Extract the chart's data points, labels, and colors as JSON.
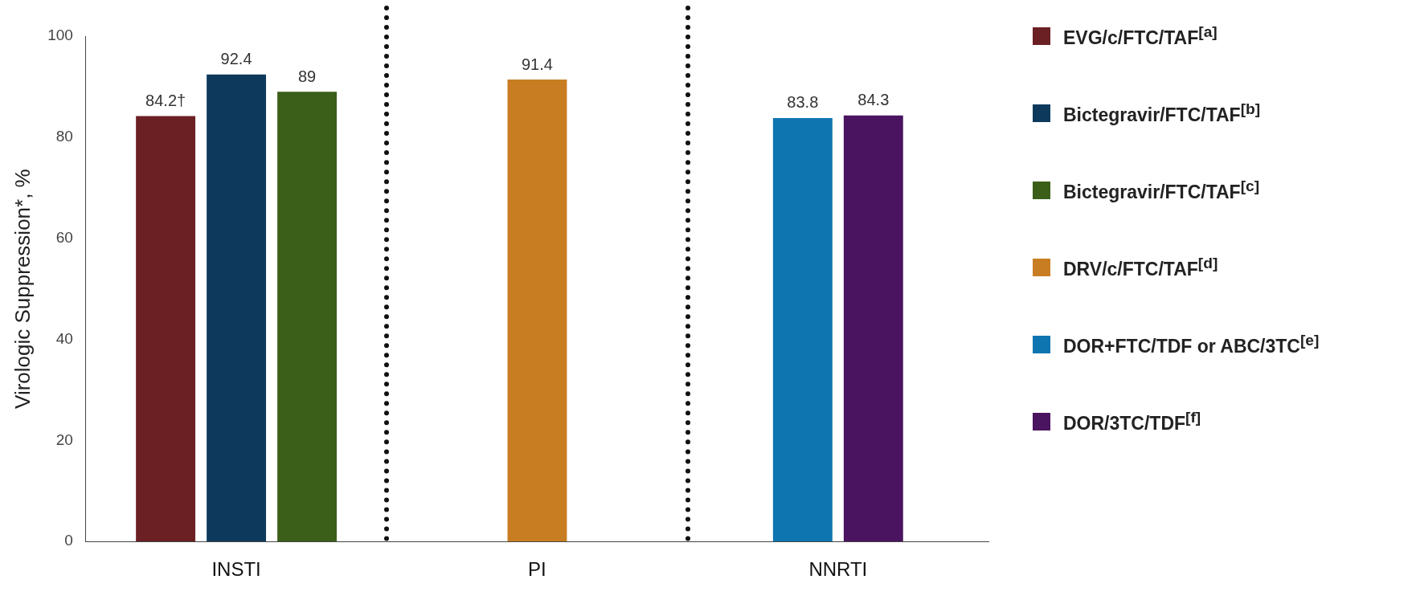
{
  "chart_data": {
    "type": "bar",
    "ylabel": "Virologic Suppression*, %",
    "categories": [
      "INSTI",
      "PI",
      "NNRTI"
    ],
    "series": [
      {
        "name": "EVG/c/FTC/TAF$^{[a]}$",
        "color": "#6b2024",
        "values": [
          84.2,
          null,
          null
        ],
        "value_labels": [
          "84.2†",
          null,
          null
        ]
      },
      {
        "name": "Bictegravir/FTC/TAF$^{[b]}$",
        "color": "#0d3a5c",
        "values": [
          92.4,
          null,
          null
        ],
        "value_labels": [
          "92.4",
          null,
          null
        ]
      },
      {
        "name": "Bictegravir/FTC/TAF$^{[c]}$",
        "color": "#3b5e19",
        "values": [
          89,
          null,
          null
        ],
        "value_labels": [
          "89",
          null,
          null
        ]
      },
      {
        "name": "DRV/c/FTC/TAF$^{[d]}$",
        "color": "#c97d22",
        "values": [
          null,
          91.4,
          null
        ],
        "value_labels": [
          null,
          "91.4",
          null
        ]
      },
      {
        "name": "DOR+FTC/TDF or ABC/3TC$^{[e]}$",
        "color": "#0f75b0",
        "values": [
          null,
          null,
          83.8
        ],
        "value_labels": [
          null,
          null,
          "83.8"
        ]
      },
      {
        "name": "DOR/3TC/TDF$^{[f]}$",
        "color": "#4a1460",
        "values": [
          null,
          null,
          84.3
        ],
        "value_labels": [
          null,
          null,
          "84.3"
        ]
      }
    ],
    "ylim": [
      0,
      100
    ],
    "yticks": [
      0,
      20,
      40,
      60,
      80,
      100
    ],
    "grid": false,
    "legend": "right"
  }
}
